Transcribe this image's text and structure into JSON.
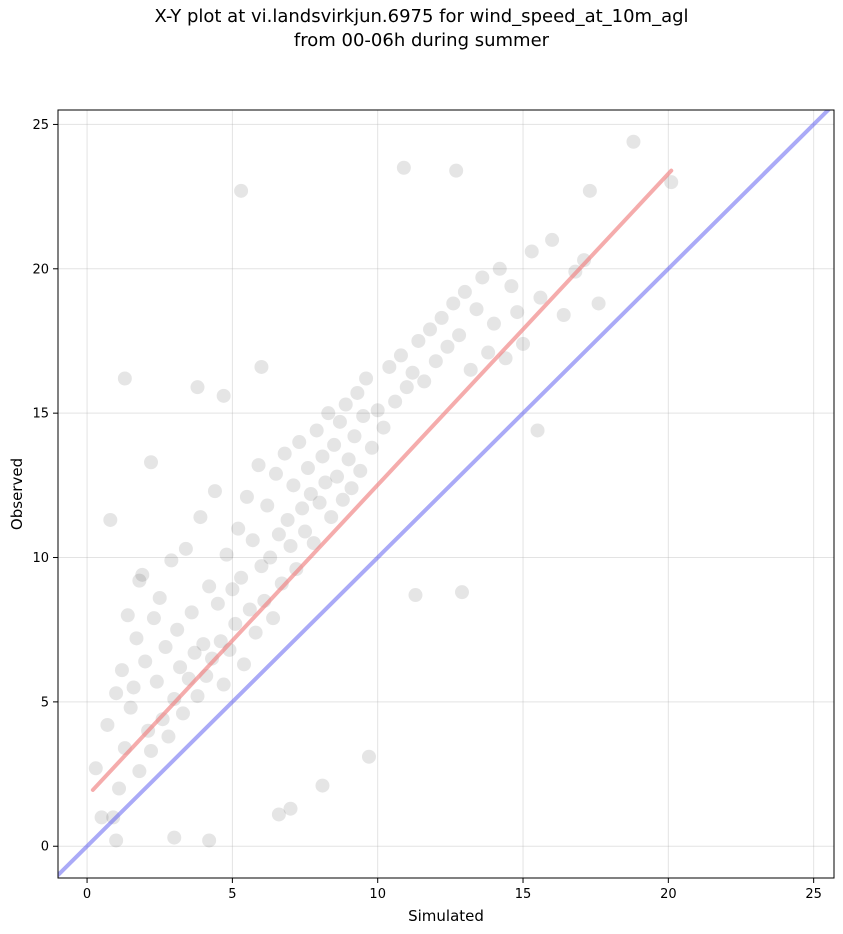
{
  "chart_data": {
    "type": "scatter",
    "title": "X-Y plot at vi.landsvirkjun.6975 for wind_speed_at_10m_agl",
    "subtitle": "from 00-06h during summer",
    "xlabel": "Simulated",
    "ylabel": "Observed",
    "xlim": [
      -1.0,
      25.7
    ],
    "ylim": [
      -1.1,
      25.5
    ],
    "xticks": [
      0,
      5,
      10,
      15,
      20,
      25
    ],
    "yticks": [
      0,
      5,
      10,
      15,
      20,
      25
    ],
    "grid": true,
    "legend": "none",
    "point_color": "#000000",
    "point_opacity": 0.1,
    "series": [
      {
        "values_description": "observed vs simulated points (representative sample)",
        "x": [
          0.3,
          0.5,
          0.7,
          0.8,
          1.0,
          1.1,
          1.2,
          1.3,
          1.4,
          1.5,
          1.6,
          1.7,
          1.8,
          1.9,
          2.0,
          2.1,
          2.2,
          2.3,
          2.4,
          2.5,
          2.6,
          2.7,
          2.8,
          2.9,
          3.0,
          3.1,
          3.2,
          3.3,
          3.4,
          3.5,
          3.6,
          3.7,
          3.8,
          3.9,
          4.0,
          4.1,
          4.2,
          4.3,
          4.4,
          4.5,
          4.6,
          4.7,
          4.8,
          4.9,
          5.0,
          5.1,
          5.2,
          5.3,
          5.4,
          5.5,
          5.6,
          5.7,
          5.8,
          5.9,
          6.0,
          6.1,
          6.2,
          6.3,
          6.4,
          6.5,
          6.6,
          6.7,
          6.8,
          6.9,
          7.0,
          7.1,
          7.2,
          7.3,
          7.4,
          7.5,
          7.6,
          7.7,
          7.8,
          7.9,
          8.0,
          8.1,
          8.2,
          8.3,
          8.4,
          8.5,
          8.6,
          8.7,
          8.8,
          8.9,
          9.0,
          9.1,
          9.2,
          9.3,
          9.4,
          9.5,
          9.6,
          9.8,
          10.0,
          10.2,
          10.4,
          10.6,
          10.8,
          11.0,
          11.2,
          11.4,
          11.6,
          11.8,
          12.0,
          12.2,
          12.4,
          12.6,
          12.8,
          13.0,
          13.2,
          13.4,
          13.6,
          13.8,
          14.0,
          14.2,
          14.4,
          14.6,
          14.8,
          15.0,
          15.3,
          15.6,
          16.0,
          16.4,
          16.8,
          17.1,
          17.3,
          17.6,
          18.8,
          20.1,
          1.3,
          5.3,
          12.7,
          10.9,
          3.8,
          4.7,
          6.0,
          2.2,
          1.0,
          8.1,
          9.7,
          12.9,
          11.3,
          15.5,
          7.0,
          3.0,
          0.9,
          1.8,
          6.6,
          4.2
        ],
        "y": [
          2.7,
          1.0,
          4.2,
          11.3,
          5.3,
          2.0,
          6.1,
          3.4,
          8.0,
          4.8,
          5.5,
          7.2,
          2.6,
          9.4,
          6.4,
          4.0,
          3.3,
          7.9,
          5.7,
          8.6,
          4.4,
          6.9,
          3.8,
          9.9,
          5.1,
          7.5,
          6.2,
          4.6,
          10.3,
          5.8,
          8.1,
          6.7,
          5.2,
          11.4,
          7.0,
          5.9,
          9.0,
          6.5,
          12.3,
          8.4,
          7.1,
          5.6,
          10.1,
          6.8,
          8.9,
          7.7,
          11.0,
          9.3,
          6.3,
          12.1,
          8.2,
          10.6,
          7.4,
          13.2,
          9.7,
          8.5,
          11.8,
          10.0,
          7.9,
          12.9,
          10.8,
          9.1,
          13.6,
          11.3,
          10.4,
          12.5,
          9.6,
          14.0,
          11.7,
          10.9,
          13.1,
          12.2,
          10.5,
          14.4,
          11.9,
          13.5,
          12.6,
          15.0,
          11.4,
          13.9,
          12.8,
          14.7,
          12.0,
          15.3,
          13.4,
          12.4,
          14.2,
          15.7,
          13.0,
          14.9,
          16.2,
          13.8,
          15.1,
          14.5,
          16.6,
          15.4,
          17.0,
          15.9,
          16.4,
          17.5,
          16.1,
          17.9,
          16.8,
          18.3,
          17.3,
          18.8,
          17.7,
          19.2,
          16.5,
          18.6,
          19.7,
          17.1,
          18.1,
          20.0,
          16.9,
          19.4,
          18.5,
          17.4,
          20.6,
          19.0,
          21.0,
          18.4,
          19.9,
          20.3,
          22.7,
          18.8,
          24.4,
          23.0,
          16.2,
          22.7,
          23.4,
          23.5,
          15.9,
          15.6,
          16.6,
          13.3,
          0.2,
          2.1,
          3.1,
          8.8,
          8.7,
          14.4,
          1.3,
          0.3,
          1.0,
          9.2,
          1.1,
          0.2
        ]
      }
    ],
    "fit_line": {
      "x": [
        0.2,
        20.1
      ],
      "y": [
        1.95,
        23.4
      ],
      "color": "#f08080",
      "opacity": 0.65
    },
    "identity_line": {
      "x": [
        -1.0,
        25.7
      ],
      "y": [
        -1.0,
        25.7
      ],
      "color": "#6464f0",
      "opacity": 0.55
    }
  }
}
